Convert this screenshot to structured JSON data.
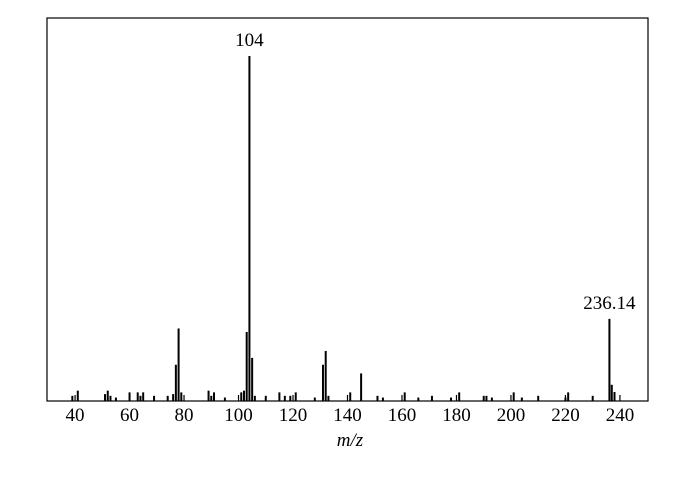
{
  "chart_data": {
    "type": "bar",
    "xlabel": "m/z",
    "x": [
      39,
      41,
      51,
      52,
      53,
      55,
      60,
      63,
      64,
      65,
      69,
      74,
      76,
      77,
      78,
      79,
      89,
      90,
      91,
      95,
      101,
      102,
      103,
      104,
      105,
      106,
      110,
      115,
      117,
      119,
      121,
      128,
      131,
      132,
      133,
      141,
      145,
      151,
      153,
      161,
      166,
      171,
      178,
      181,
      190,
      191,
      193,
      201,
      204,
      210,
      220,
      221,
      230,
      236.14,
      237,
      238
    ],
    "values": [
      1.5,
      3,
      2,
      3,
      1.5,
      1,
      2.5,
      2.5,
      1.5,
      2.5,
      1.5,
      1.5,
      2,
      10.5,
      21,
      2.5,
      3,
      1.5,
      2.5,
      1,
      2.5,
      3,
      20,
      100,
      12.5,
      1.5,
      1.5,
      2.5,
      1.5,
      1.5,
      2.5,
      1,
      10.5,
      14.5,
      1.5,
      2.5,
      8,
      1.5,
      1,
      2.5,
      1,
      1.5,
      1,
      2.5,
      1.5,
      1.5,
      1,
      2.5,
      1,
      1.5,
      1,
      2.5,
      1.5,
      23.8,
      4.7,
      2.6
    ],
    "value_labels": [
      null,
      null,
      null,
      null,
      null,
      null,
      null,
      null,
      null,
      null,
      null,
      null,
      null,
      null,
      null,
      null,
      null,
      null,
      null,
      null,
      null,
      null,
      null,
      "104",
      null,
      null,
      null,
      null,
      null,
      null,
      null,
      null,
      null,
      null,
      null,
      null,
      null,
      null,
      null,
      null,
      null,
      null,
      null,
      null,
      null,
      null,
      null,
      null,
      null,
      null,
      null,
      null,
      null,
      "236.14",
      null,
      null
    ],
    "color": "#000000",
    "xlim": [
      29.7,
      250.3
    ],
    "ylim": [
      0,
      111
    ],
    "xticks": [
      40,
      60,
      80,
      100,
      120,
      140,
      160,
      180,
      200,
      220,
      240
    ]
  }
}
